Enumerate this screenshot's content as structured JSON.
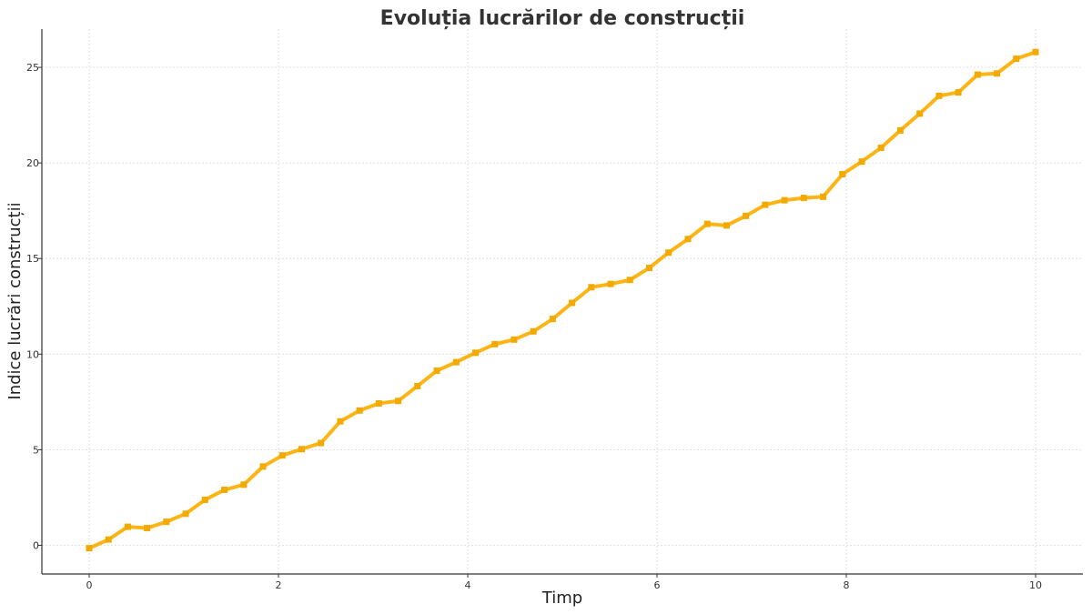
{
  "chart_data": {
    "type": "line",
    "title": "Evoluția lucrărilor de construcții",
    "xlabel": "Timp",
    "ylabel": "Indice lucrări construcții",
    "xlim": [
      -0.5,
      10.5
    ],
    "ylim": [
      -1.5,
      27.0
    ],
    "xticks": [
      0,
      2,
      4,
      6,
      8,
      10
    ],
    "yticks": [
      0,
      5,
      10,
      15,
      20,
      25
    ],
    "grid": true,
    "color": "#FDB515",
    "marker_color": "#F2A900",
    "series": [
      {
        "x": [
          0,
          0.204,
          0.408,
          0.612,
          0.816,
          1.02,
          1.224,
          1.429,
          1.633,
          1.837,
          2.041,
          2.245,
          2.449,
          2.653,
          2.857,
          3.061,
          3.265,
          3.469,
          3.673,
          3.878,
          4.082,
          4.286,
          4.49,
          4.694,
          4.898,
          5.102,
          5.306,
          5.51,
          5.714,
          5.918,
          6.122,
          6.327,
          6.531,
          6.735,
          6.939,
          7.143,
          7.347,
          7.551,
          7.755,
          7.959,
          8.163,
          8.367,
          8.571,
          8.776,
          8.98,
          9.184,
          9.388,
          9.592,
          9.796,
          10.0
        ],
        "y": [
          -0.15,
          0.3,
          0.97,
          0.9,
          1.23,
          1.65,
          2.38,
          2.9,
          3.17,
          4.12,
          4.7,
          5.03,
          5.35,
          6.48,
          7.05,
          7.42,
          7.55,
          8.33,
          9.13,
          9.58,
          10.07,
          10.52,
          10.76,
          11.19,
          11.84,
          12.68,
          13.5,
          13.67,
          13.88,
          14.51,
          15.31,
          16.02,
          16.81,
          16.73,
          17.23,
          17.81,
          18.05,
          18.17,
          18.23,
          19.41,
          20.07,
          20.79,
          21.7,
          22.58,
          23.51,
          23.69,
          24.62,
          24.68,
          25.45,
          25.8
        ]
      }
    ]
  }
}
